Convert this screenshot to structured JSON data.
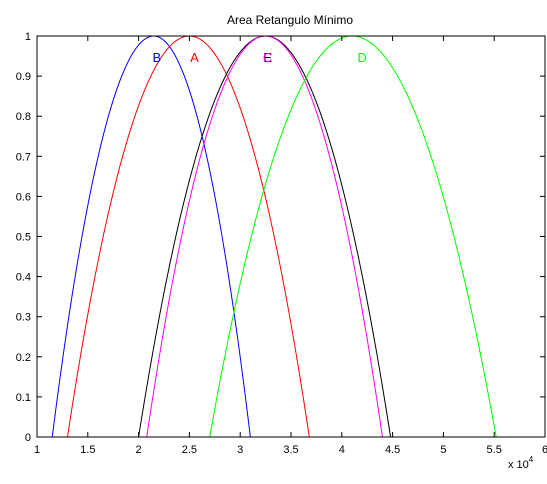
{
  "chart_data": {
    "type": "line",
    "title": "Area Retangulo Mínimo",
    "xlabel": "",
    "ylabel": "",
    "x_multiplier_label": "x 10",
    "x_multiplier_exponent": "4",
    "xlim": [
      1,
      6
    ],
    "ylim": [
      0,
      1
    ],
    "xticks": [
      1,
      1.5,
      2,
      2.5,
      3,
      3.5,
      4,
      4.5,
      5,
      5.5,
      6
    ],
    "xtick_labels": [
      "1",
      "1.5",
      "2",
      "2.5",
      "3",
      "3.5",
      "4",
      "4.5",
      "5",
      "5.5",
      "6"
    ],
    "yticks": [
      0,
      0.1,
      0.2,
      0.3,
      0.4,
      0.5,
      0.6,
      0.7,
      0.8,
      0.9,
      1
    ],
    "ytick_labels": [
      "0",
      "0.1",
      "0.2",
      "0.3",
      "0.4",
      "0.5",
      "0.6",
      "0.7",
      "0.8",
      "0.9",
      "1"
    ],
    "grid": false,
    "series": [
      {
        "label": "B",
        "color": "#0000ff",
        "center": 2.15,
        "start": 1.15,
        "end": 3.1,
        "label_x": 2.18
      },
      {
        "label": "A",
        "color": "#ff0000",
        "center": 2.5,
        "start": 1.3,
        "end": 3.68,
        "label_x": 2.55
      },
      {
        "label": "E",
        "color": "#000000",
        "center": 3.25,
        "start": 2.0,
        "end": 4.48,
        "label_x": 3.27
      },
      {
        "label": "C",
        "color": "#ff00ff",
        "center": 3.25,
        "start": 2.08,
        "end": 4.4,
        "label_x": 3.27
      },
      {
        "label": "D",
        "color": "#00ff00",
        "center": 4.1,
        "start": 2.7,
        "end": 5.52,
        "label_x": 4.2
      }
    ]
  }
}
